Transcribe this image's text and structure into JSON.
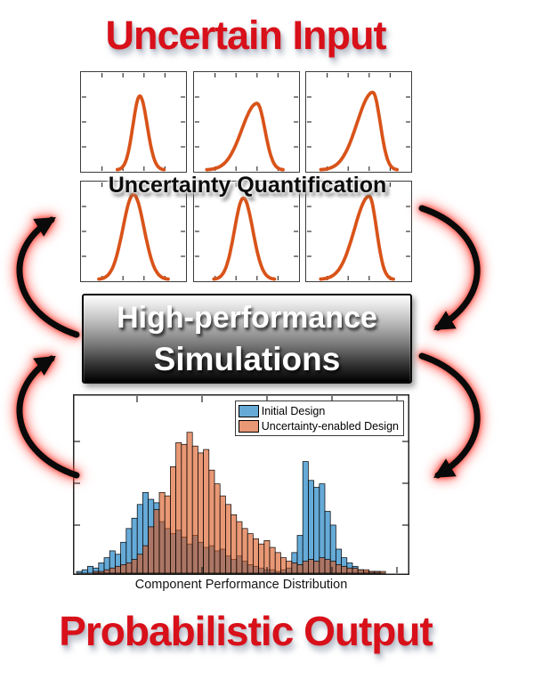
{
  "titles": {
    "input": "Uncertain Input",
    "uq": "Uncertainty Quantification",
    "sim_line1": "High-performance",
    "sim_line2": "Simulations",
    "output": "Probabilistic Output"
  },
  "colors": {
    "title_red": "#D8101A",
    "curve_orange": "#D95319",
    "arrow_black": "#0a0a0a",
    "arrow_glow": "#FF3B30",
    "plot_border": "#3c3c3c",
    "tick": "#333333"
  },
  "chart_data": [
    {
      "id": "output-histogram",
      "type": "bar",
      "subtype": "overlaid-histogram",
      "title": "",
      "xlabel": "Component Performance Distribution",
      "ylabel": "",
      "bins": 60,
      "ylim": [
        0,
        1
      ],
      "y_units": "relative frequency (axis unlabeled, inward ticks only)",
      "legend_position": "top-right",
      "series": [
        {
          "name": "Initial Design",
          "color": "#0072BD",
          "opacity": 0.6,
          "shape": "bimodal",
          "values": [
            0.01,
            0.02,
            0.04,
            0.03,
            0.06,
            0.09,
            0.13,
            0.11,
            0.18,
            0.26,
            0.32,
            0.4,
            0.47,
            0.43,
            0.41,
            0.3,
            0.26,
            0.23,
            0.25,
            0.21,
            0.17,
            0.22,
            0.18,
            0.15,
            0.16,
            0.13,
            0.14,
            0.1,
            0.08,
            0.1,
            0.07,
            0.05,
            0.04,
            0.03,
            0.02,
            0.02,
            0.01,
            0.02,
            0.03,
            0.12,
            0.22,
            0.65,
            0.54,
            0.5,
            0.52,
            0.36,
            0.28,
            0.14,
            0.09,
            0.06,
            0.04,
            0.02,
            0.01,
            0.01,
            0.01,
            0,
            0,
            0,
            0,
            0
          ]
        },
        {
          "name": "Uncertainty-enabled Design",
          "color": "#D95319",
          "opacity": 0.6,
          "shape": "unimodal",
          "values": [
            0,
            0,
            0,
            0.01,
            0.01,
            0.02,
            0.03,
            0.04,
            0.05,
            0.06,
            0.08,
            0.11,
            0.16,
            0.27,
            0.37,
            0.47,
            0.45,
            0.62,
            0.76,
            0.75,
            0.82,
            0.74,
            0.7,
            0.72,
            0.6,
            0.52,
            0.45,
            0.4,
            0.34,
            0.3,
            0.26,
            0.23,
            0.2,
            0.17,
            0.19,
            0.15,
            0.12,
            0.09,
            0.07,
            0.06,
            0.05,
            0.07,
            0.08,
            0.07,
            0.09,
            0.08,
            0.07,
            0.05,
            0.04,
            0.03,
            0.03,
            0.02,
            0.02,
            0.01,
            0.01,
            0.01,
            0,
            0,
            0,
            0
          ]
        }
      ]
    },
    {
      "id": "input-distributions",
      "type": "line",
      "description": "six small unlabeled probability-density plots, orange skewed bell curves, 2 rows x 3 columns",
      "color": "#D95319",
      "curves": [
        {
          "row": 1,
          "col": 1,
          "center": 0.56,
          "sigma_left": 0.065,
          "sigma_right": 0.07,
          "peak": 0.8
        },
        {
          "row": 1,
          "col": 2,
          "center": 0.6,
          "sigma_left": 0.145,
          "sigma_right": 0.075,
          "peak": 0.72
        },
        {
          "row": 1,
          "col": 3,
          "center": 0.635,
          "sigma_left": 0.15,
          "sigma_right": 0.07,
          "peak": 0.84
        },
        {
          "row": 2,
          "col": 1,
          "center": 0.5,
          "sigma_left": 0.1,
          "sigma_right": 0.1,
          "peak": 0.92
        },
        {
          "row": 2,
          "col": 2,
          "center": 0.47,
          "sigma_left": 0.085,
          "sigma_right": 0.09,
          "peak": 0.88
        },
        {
          "row": 2,
          "col": 3,
          "center": 0.6,
          "sigma_left": 0.14,
          "sigma_right": 0.07,
          "peak": 0.9
        }
      ]
    }
  ]
}
